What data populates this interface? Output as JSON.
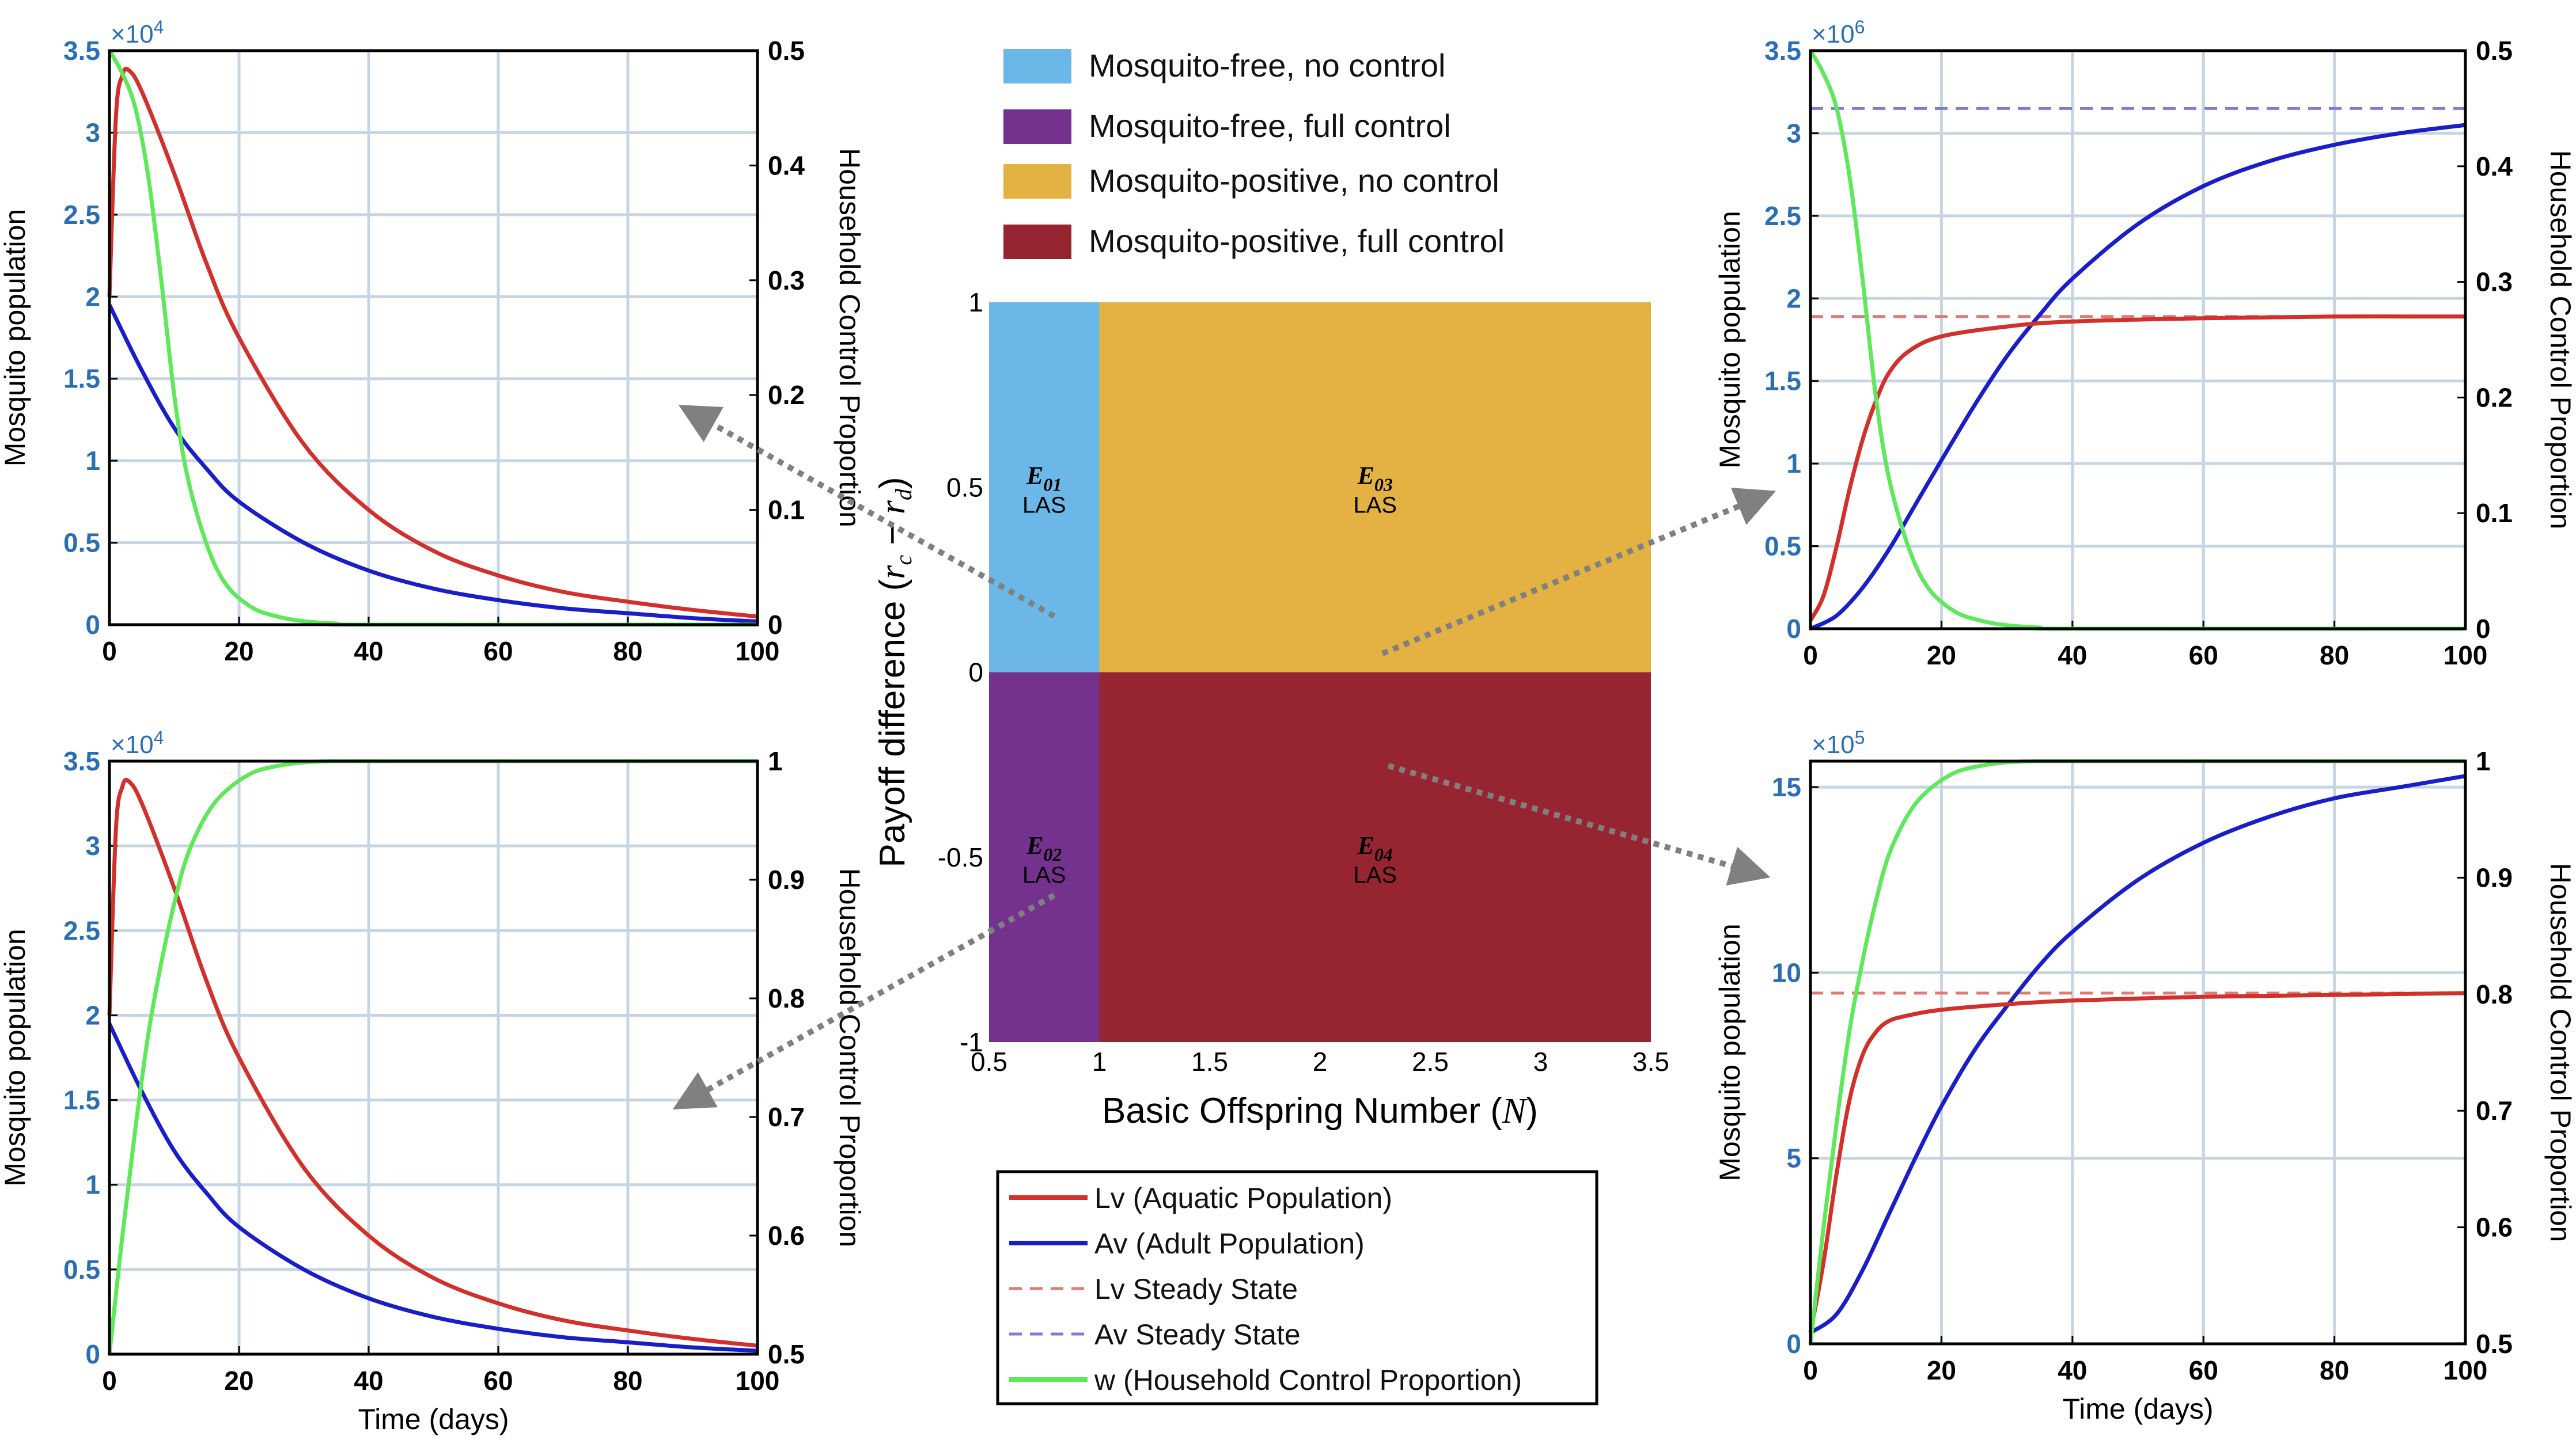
{
  "chart_data": [
    {
      "id": "tl",
      "type": "line",
      "multiplier": "×10",
      "exponent": "4",
      "ylabel": "Mosquito population",
      "y2label": "Household Control Proportion",
      "xlabel": "",
      "xlim": [
        0,
        100
      ],
      "ylim": [
        0,
        3.5
      ],
      "y2lim": [
        0,
        0.5
      ],
      "xticks": [
        "0",
        "20",
        "40",
        "60",
        "80",
        "100"
      ],
      "yticks": [
        "0",
        "0.5",
        "1",
        "1.5",
        "2",
        "2.5",
        "3",
        "3.5"
      ],
      "y2ticks": [
        "0",
        "0.1",
        "0.2",
        "0.3",
        "0.4",
        "0.5"
      ],
      "series": [
        {
          "name": "Lv",
          "axis": "left",
          "x": [
            0,
            1,
            2,
            3,
            5,
            10,
            15,
            20,
            30,
            40,
            50,
            60,
            70,
            80,
            90,
            100
          ],
          "values": [
            2.0,
            3.1,
            3.35,
            3.38,
            3.25,
            2.75,
            2.2,
            1.75,
            1.1,
            0.7,
            0.45,
            0.3,
            0.2,
            0.14,
            0.09,
            0.05
          ]
        },
        {
          "name": "Av",
          "axis": "left",
          "x": [
            0,
            5,
            10,
            15,
            20,
            30,
            40,
            50,
            60,
            70,
            80,
            90,
            100
          ],
          "values": [
            1.95,
            1.55,
            1.2,
            0.95,
            0.75,
            0.5,
            0.33,
            0.22,
            0.15,
            0.1,
            0.07,
            0.04,
            0.02
          ]
        },
        {
          "name": "Lv Steady State",
          "axis": "left",
          "x": [
            0,
            100
          ],
          "values": [
            0,
            0
          ]
        },
        {
          "name": "Av Steady State",
          "axis": "left",
          "x": [
            0,
            100
          ],
          "values": [
            0,
            0
          ]
        },
        {
          "name": "w",
          "axis": "right",
          "x": [
            0,
            2,
            4,
            6,
            8,
            10,
            12,
            15,
            18,
            22,
            26,
            30,
            35,
            40,
            100
          ],
          "values": [
            0.5,
            0.48,
            0.45,
            0.39,
            0.3,
            0.2,
            0.13,
            0.07,
            0.035,
            0.015,
            0.007,
            0.003,
            0.001,
            0.0,
            0.0
          ]
        }
      ]
    },
    {
      "id": "bl",
      "type": "line",
      "multiplier": "×10",
      "exponent": "4",
      "ylabel": "Mosquito population",
      "y2label": "Household Control Proportion",
      "xlabel": "Time (days)",
      "xlim": [
        0,
        100
      ],
      "ylim": [
        0,
        3.5
      ],
      "y2lim": [
        0.5,
        1
      ],
      "xticks": [
        "0",
        "20",
        "40",
        "60",
        "80",
        "100"
      ],
      "yticks": [
        "0",
        "0.5",
        "1",
        "1.5",
        "2",
        "2.5",
        "3",
        "3.5"
      ],
      "y2ticks": [
        "0.5",
        "0.6",
        "0.7",
        "0.8",
        "0.9",
        "1"
      ],
      "series": [
        {
          "name": "Lv",
          "axis": "left",
          "x": [
            0,
            1,
            2,
            3,
            5,
            10,
            15,
            20,
            30,
            40,
            50,
            60,
            70,
            80,
            90,
            100
          ],
          "values": [
            2.0,
            3.1,
            3.35,
            3.38,
            3.25,
            2.75,
            2.2,
            1.75,
            1.1,
            0.7,
            0.45,
            0.3,
            0.2,
            0.14,
            0.09,
            0.05
          ]
        },
        {
          "name": "Av",
          "axis": "left",
          "x": [
            0,
            5,
            10,
            15,
            20,
            30,
            40,
            50,
            60,
            70,
            80,
            90,
            100
          ],
          "values": [
            1.95,
            1.55,
            1.2,
            0.95,
            0.75,
            0.5,
            0.33,
            0.22,
            0.15,
            0.1,
            0.07,
            0.04,
            0.02
          ]
        },
        {
          "name": "Lv Steady State",
          "axis": "left",
          "x": [
            0,
            100
          ],
          "values": [
            0,
            0
          ]
        },
        {
          "name": "Av Steady State",
          "axis": "left",
          "x": [
            0,
            100
          ],
          "values": [
            0,
            0
          ]
        },
        {
          "name": "w",
          "axis": "right",
          "x": [
            0,
            2,
            4,
            6,
            8,
            10,
            12,
            15,
            18,
            22,
            26,
            30,
            35,
            40,
            100
          ],
          "values": [
            0.5,
            0.6,
            0.69,
            0.77,
            0.83,
            0.88,
            0.92,
            0.955,
            0.975,
            0.99,
            0.996,
            0.999,
            1.0,
            1.0,
            1.0
          ]
        }
      ]
    },
    {
      "id": "tr",
      "type": "line",
      "multiplier": "×10",
      "exponent": "6",
      "ylabel": "Mosquito population",
      "y2label": "Household Control Proportion",
      "xlabel": "",
      "xlim": [
        0,
        100
      ],
      "ylim": [
        0,
        3.5
      ],
      "y2lim": [
        0,
        0.5
      ],
      "xticks": [
        "0",
        "20",
        "40",
        "60",
        "80",
        "100"
      ],
      "yticks": [
        "0",
        "0.5",
        "1",
        "1.5",
        "2",
        "2.5",
        "3",
        "3.5"
      ],
      "y2ticks": [
        "0",
        "0.1",
        "0.2",
        "0.3",
        "0.4",
        "0.5"
      ],
      "series": [
        {
          "name": "Lv",
          "axis": "left",
          "x": [
            0,
            2,
            4,
            6,
            8,
            10,
            12,
            15,
            20,
            30,
            40,
            60,
            80,
            100
          ],
          "values": [
            0.05,
            0.2,
            0.5,
            0.85,
            1.15,
            1.38,
            1.55,
            1.68,
            1.77,
            1.83,
            1.86,
            1.88,
            1.89,
            1.89
          ]
        },
        {
          "name": "Av",
          "axis": "left",
          "x": [
            0,
            4,
            8,
            12,
            16,
            20,
            25,
            30,
            35,
            40,
            50,
            60,
            70,
            80,
            90,
            100
          ],
          "values": [
            0.0,
            0.08,
            0.25,
            0.48,
            0.75,
            1.02,
            1.35,
            1.65,
            1.9,
            2.12,
            2.45,
            2.68,
            2.83,
            2.93,
            3.0,
            3.05
          ]
        },
        {
          "name": "Lv Steady State",
          "axis": "left",
          "x": [
            0,
            100
          ],
          "values": [
            1.89,
            1.89
          ]
        },
        {
          "name": "Av Steady State",
          "axis": "left",
          "x": [
            0,
            100
          ],
          "values": [
            3.15,
            3.15
          ]
        },
        {
          "name": "w",
          "axis": "right",
          "x": [
            0,
            2,
            4,
            6,
            8,
            10,
            12,
            15,
            18,
            22,
            26,
            30,
            35,
            40,
            100
          ],
          "values": [
            0.5,
            0.48,
            0.45,
            0.39,
            0.3,
            0.2,
            0.13,
            0.07,
            0.035,
            0.015,
            0.007,
            0.003,
            0.001,
            0.0,
            0.0
          ]
        }
      ]
    },
    {
      "id": "br",
      "type": "line",
      "multiplier": "×10",
      "exponent": "5",
      "ylabel": "Mosquito population",
      "y2label": "Household Control Proportion",
      "xlabel": "Time (days)",
      "xlim": [
        0,
        100
      ],
      "ylim": [
        0,
        15.7
      ],
      "y2lim": [
        0.5,
        1
      ],
      "xticks": [
        "0",
        "20",
        "40",
        "60",
        "80",
        "100"
      ],
      "yticks": [
        "0",
        "5",
        "10",
        "15"
      ],
      "yticks_values": [
        0,
        5,
        10,
        15
      ],
      "y2ticks": [
        "0.5",
        "0.6",
        "0.7",
        "0.8",
        "0.9",
        "1"
      ],
      "series": [
        {
          "name": "Lv",
          "axis": "left",
          "x": [
            0,
            2,
            4,
            6,
            8,
            10,
            12,
            15,
            20,
            30,
            40,
            60,
            80,
            100
          ],
          "values": [
            0.3,
            2.2,
            4.6,
            6.6,
            7.8,
            8.4,
            8.7,
            8.85,
            9.0,
            9.15,
            9.25,
            9.35,
            9.4,
            9.45
          ]
        },
        {
          "name": "Av",
          "axis": "left",
          "x": [
            0,
            4,
            8,
            12,
            16,
            20,
            25,
            30,
            35,
            40,
            50,
            60,
            70,
            80,
            90,
            100
          ],
          "values": [
            0.3,
            0.8,
            2.0,
            3.5,
            5.0,
            6.4,
            7.9,
            9.1,
            10.2,
            11.1,
            12.5,
            13.5,
            14.2,
            14.7,
            15.0,
            15.3
          ]
        },
        {
          "name": "Lv Steady State",
          "axis": "left",
          "x": [
            0,
            100
          ],
          "values": [
            9.45,
            9.45
          ]
        },
        {
          "name": "Av Steady State",
          "axis": "left",
          "x": [
            0,
            100
          ],
          "values": [
            15.7,
            15.7
          ]
        },
        {
          "name": "w",
          "axis": "right",
          "x": [
            0,
            2,
            4,
            6,
            8,
            10,
            12,
            15,
            18,
            22,
            26,
            30,
            35,
            40,
            100
          ],
          "values": [
            0.5,
            0.6,
            0.69,
            0.77,
            0.83,
            0.88,
            0.92,
            0.955,
            0.975,
            0.99,
            0.996,
            0.999,
            1.0,
            1.0,
            1.0
          ]
        }
      ]
    },
    {
      "id": "center",
      "type": "heatmap",
      "xlabel": "Basic Offspring Number (N)",
      "ylabel": "Payoff difference (r_c − r_d)",
      "xlim": [
        0.5,
        3.5
      ],
      "ylim": [
        -1,
        1
      ],
      "xticks": [
        "0.5",
        "1",
        "1.5",
        "2",
        "2.5",
        "3",
        "3.5"
      ],
      "yticks": [
        "-1",
        "-0.5",
        "0",
        "0.5",
        "1"
      ],
      "regions": [
        {
          "name": "E01",
          "sub": "01",
          "status": "LAS",
          "x": [
            0.5,
            1
          ],
          "y": [
            0,
            1
          ],
          "color": "#6bb8e8",
          "legend": "Mosquito-free, no control"
        },
        {
          "name": "E02",
          "sub": "02",
          "status": "LAS",
          "x": [
            0.5,
            1
          ],
          "y": [
            -1,
            0
          ],
          "color": "#74318e",
          "legend": "Mosquito-free, full control"
        },
        {
          "name": "E03",
          "sub": "03",
          "status": "LAS",
          "x": [
            1,
            3.5
          ],
          "y": [
            0,
            1
          ],
          "color": "#e4b243",
          "legend": "Mosquito-positive, no control"
        },
        {
          "name": "E04",
          "sub": "04",
          "status": "LAS",
          "x": [
            1,
            3.5
          ],
          "y": [
            -1,
            0
          ],
          "color": "#962531",
          "legend": "Mosquito-positive, full control"
        }
      ]
    }
  ],
  "legend_top": [
    {
      "label": "Mosquito-free, no control",
      "color": "#6bb8e8"
    },
    {
      "label": "Mosquito-free, full control",
      "color": "#74318e"
    },
    {
      "label": "Mosquito-positive, no control",
      "color": "#e4b243"
    },
    {
      "label": "Mosquito-positive, full control",
      "color": "#962531"
    }
  ],
  "legend_lines": [
    {
      "label": "Lv (Aquatic Population)",
      "color": "#d2302a",
      "dash": false
    },
    {
      "label": "Av (Adult Population)",
      "color": "#1a1ec8",
      "dash": false
    },
    {
      "label": "Lv Steady State",
      "color": "#e07a75",
      "dash": true
    },
    {
      "label": "Av Steady State",
      "color": "#7b7be0",
      "dash": true
    },
    {
      "label": "w (Household Control Proportion)",
      "color": "#5ee85a",
      "dash": false
    }
  ],
  "colors": {
    "Lv": "#d2302a",
    "Av": "#1a1ec8",
    "LvSS": "#e07a75",
    "AvSS": "#7b7be0",
    "w": "#5ee85a",
    "grid": "#c5d5e3",
    "tick_left": "#2a6fb5",
    "arrow": "#808080"
  },
  "center_labels": {
    "E": "E",
    "ylabel_main": "Payoff difference (",
    "ylabel_rc": "r",
    "ylabel_c": "c",
    "ylabel_minus": " − ",
    "ylabel_rd": "r",
    "ylabel_d": "d",
    "ylabel_close": ")",
    "xlabel_main": "Basic Offspring Number (",
    "xlabel_N": "N",
    "xlabel_close": ")"
  }
}
